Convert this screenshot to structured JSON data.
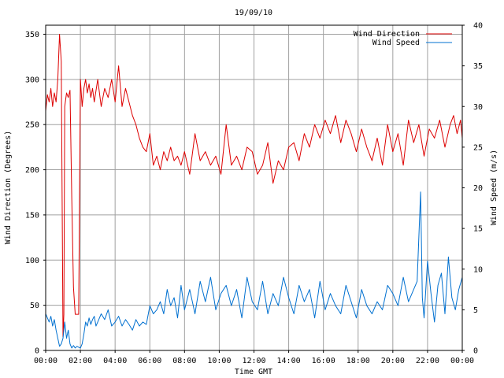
{
  "chart_data": {
    "type": "line",
    "title": "19/09/10",
    "xlabel": "Time GMT",
    "ylabel_left": "Wind Direction (Degrees)",
    "ylabel_right": "Wind Speed (m/s)",
    "x_range_hours": [
      0,
      24
    ],
    "x_ticks": [
      "00:00",
      "02:00",
      "04:00",
      "06:00",
      "08:00",
      "10:00",
      "12:00",
      "14:00",
      "16:00",
      "18:00",
      "20:00",
      "22:00",
      "00:00"
    ],
    "ylim_left": [
      0,
      360
    ],
    "yticks_left": [
      "0",
      "50",
      "100",
      "150",
      "200",
      "250",
      "300",
      "350"
    ],
    "ylim_right": [
      0,
      40
    ],
    "yticks_right": [
      "0",
      "5",
      "10",
      "15",
      "20",
      "25",
      "30",
      "35",
      "40"
    ],
    "grid": true,
    "legend_position": "top-right",
    "colors": {
      "direction": "#dd0000",
      "speed": "#0070d0",
      "grid": "#a0a0a0",
      "frame": "#000000"
    },
    "series": [
      {
        "name": "Wind Direction",
        "axis": "left",
        "color": "#dd0000",
        "x": [
          0,
          0.1,
          0.2,
          0.3,
          0.4,
          0.5,
          0.6,
          0.7,
          0.8,
          0.9,
          1.0,
          1.05,
          1.1,
          1.2,
          1.3,
          1.4,
          1.5,
          1.6,
          1.7,
          1.8,
          1.9,
          2.0,
          2.1,
          2.2,
          2.3,
          2.4,
          2.5,
          2.6,
          2.7,
          2.8,
          3.0,
          3.2,
          3.4,
          3.6,
          3.8,
          4.0,
          4.2,
          4.4,
          4.6,
          4.8,
          5.0,
          5.2,
          5.4,
          5.6,
          5.8,
          6.0,
          6.2,
          6.4,
          6.6,
          6.8,
          7.0,
          7.2,
          7.4,
          7.6,
          7.8,
          8.0,
          8.3,
          8.6,
          8.9,
          9.2,
          9.5,
          9.8,
          10.1,
          10.4,
          10.7,
          11.0,
          11.3,
          11.6,
          11.9,
          12.2,
          12.5,
          12.8,
          13.1,
          13.4,
          13.7,
          14.0,
          14.3,
          14.6,
          14.9,
          15.2,
          15.5,
          15.8,
          16.1,
          16.4,
          16.7,
          17.0,
          17.3,
          17.6,
          17.9,
          18.2,
          18.5,
          18.8,
          19.1,
          19.4,
          19.7,
          20.0,
          20.3,
          20.6,
          20.9,
          21.2,
          21.5,
          21.8,
          22.1,
          22.4,
          22.7,
          23.0,
          23.3,
          23.5,
          23.7,
          23.9,
          24.0
        ],
        "values": [
          265,
          283,
          275,
          290,
          270,
          285,
          275,
          300,
          350,
          320,
          15,
          40,
          270,
          285,
          280,
          288,
          170,
          70,
          40,
          40,
          40,
          300,
          270,
          290,
          300,
          285,
          295,
          280,
          290,
          275,
          300,
          270,
          290,
          280,
          300,
          275,
          315,
          270,
          290,
          275,
          260,
          250,
          235,
          225,
          220,
          240,
          205,
          215,
          200,
          220,
          210,
          225,
          210,
          215,
          205,
          220,
          195,
          240,
          210,
          220,
          205,
          215,
          195,
          250,
          205,
          215,
          200,
          225,
          220,
          195,
          205,
          230,
          185,
          210,
          200,
          225,
          230,
          210,
          240,
          225,
          250,
          235,
          255,
          240,
          260,
          230,
          255,
          240,
          220,
          245,
          225,
          210,
          235,
          205,
          250,
          220,
          240,
          205,
          255,
          230,
          250,
          215,
          245,
          235,
          255,
          225,
          250,
          260,
          240,
          255,
          235
        ]
      },
      {
        "name": "Wind Speed",
        "axis": "right",
        "color": "#0070d0",
        "x": [
          0,
          0.1,
          0.2,
          0.3,
          0.4,
          0.5,
          0.6,
          0.7,
          0.8,
          0.9,
          1.0,
          1.1,
          1.2,
          1.3,
          1.4,
          1.5,
          1.6,
          1.7,
          1.8,
          1.9,
          2.0,
          2.1,
          2.2,
          2.3,
          2.4,
          2.5,
          2.6,
          2.7,
          2.8,
          2.9,
          3.0,
          3.2,
          3.4,
          3.6,
          3.8,
          4.0,
          4.2,
          4.4,
          4.6,
          4.8,
          5.0,
          5.2,
          5.4,
          5.6,
          5.8,
          6.0,
          6.2,
          6.4,
          6.6,
          6.8,
          7.0,
          7.2,
          7.4,
          7.6,
          7.8,
          8.0,
          8.3,
          8.6,
          8.9,
          9.2,
          9.5,
          9.8,
          10.1,
          10.4,
          10.7,
          11.0,
          11.3,
          11.6,
          11.9,
          12.2,
          12.5,
          12.8,
          13.1,
          13.4,
          13.7,
          14.0,
          14.3,
          14.6,
          14.9,
          15.2,
          15.5,
          15.8,
          16.1,
          16.4,
          16.7,
          17.0,
          17.3,
          17.6,
          17.9,
          18.2,
          18.5,
          18.8,
          19.1,
          19.4,
          19.7,
          20.0,
          20.3,
          20.6,
          20.9,
          21.2,
          21.4,
          21.6,
          21.7,
          21.8,
          22.0,
          22.2,
          22.4,
          22.6,
          22.8,
          23.0,
          23.2,
          23.4,
          23.6,
          23.8,
          24.0
        ],
        "values": [
          4.5,
          4.0,
          3.5,
          4.2,
          3.0,
          3.8,
          2.5,
          1.5,
          0.5,
          0.8,
          1.5,
          3.5,
          1.5,
          2.5,
          0.8,
          0.3,
          0.6,
          0.3,
          0.5,
          0.4,
          0.3,
          0.8,
          2.0,
          3.5,
          3.0,
          4.0,
          3.2,
          3.8,
          4.2,
          3.0,
          3.5,
          4.5,
          3.8,
          5.0,
          3.0,
          3.5,
          4.2,
          3.0,
          3.8,
          3.2,
          2.5,
          3.8,
          3.0,
          3.5,
          3.2,
          5.5,
          4.5,
          5.0,
          6.0,
          4.5,
          7.5,
          5.5,
          6.5,
          4.0,
          8.0,
          5.0,
          7.5,
          4.5,
          8.5,
          6.0,
          9.0,
          5.0,
          7.0,
          8.0,
          5.5,
          7.5,
          4.0,
          9.0,
          6.0,
          5.0,
          8.5,
          4.5,
          7.0,
          5.5,
          9.0,
          6.5,
          4.5,
          8.0,
          6.0,
          7.5,
          4.0,
          8.5,
          5.0,
          7.0,
          5.5,
          4.5,
          8.0,
          6.0,
          4.0,
          7.5,
          5.5,
          4.5,
          6.0,
          5.0,
          8.0,
          7.0,
          5.5,
          9.0,
          6.0,
          7.5,
          8.5,
          19.5,
          6.5,
          4.0,
          11.0,
          7.0,
          3.5,
          8.0,
          9.5,
          4.5,
          11.5,
          6.5,
          5.0,
          7.5,
          9.0
        ]
      }
    ]
  }
}
